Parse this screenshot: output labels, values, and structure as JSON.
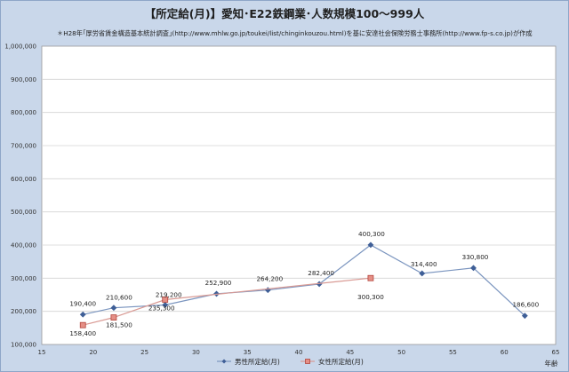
{
  "chart_data": {
    "type": "line",
    "title": "【所定給(月)】愛知･E22鉄鋼業･人数規模100～999人",
    "subtitle": "＊H28年｢厚労省賃金構造基本統計調査｣(http://www.mhlw.go.jp/toukei/list/chinginkouzou.html)を基に安達社会保険労務士事務所(http://www.fp-s.co.jp)が作成",
    "xlabel": "年齢",
    "ylabel": "",
    "xlim": [
      15,
      65
    ],
    "ylim": [
      100000,
      1000000
    ],
    "x_ticks": [
      15,
      20,
      25,
      30,
      35,
      40,
      45,
      50,
      55,
      60,
      65
    ],
    "y_ticks": [
      100000,
      200000,
      300000,
      400000,
      500000,
      600000,
      700000,
      800000,
      900000,
      1000000
    ],
    "y_tick_labels": [
      "100,000",
      "200,000",
      "300,000",
      "400,000",
      "500,000",
      "600,000",
      "700,000",
      "800,000",
      "900,000",
      "1,000,000"
    ],
    "grid": true,
    "legend_position": "bottom",
    "series": [
      {
        "name": "男性所定給(月)",
        "color": "#7b95bf",
        "marker": "diamond",
        "points": [
          {
            "x": 19,
            "y": 190400,
            "label": "190,400"
          },
          {
            "x": 22,
            "y": 210600,
            "label": "210,600"
          },
          {
            "x": 27,
            "y": 219200,
            "label": "219,200"
          },
          {
            "x": 32,
            "y": 252900,
            "label": "252,900"
          },
          {
            "x": 37,
            "y": 264200,
            "label": "264,200"
          },
          {
            "x": 42,
            "y": 282400,
            "label": "282,400"
          },
          {
            "x": 47,
            "y": 400300,
            "label": "400,300"
          },
          {
            "x": 52,
            "y": 314400,
            "label": "314,400"
          },
          {
            "x": 57,
            "y": 330800,
            "label": "330,800"
          },
          {
            "x": 62,
            "y": 186600,
            "label": "186,600"
          }
        ]
      },
      {
        "name": "女性所定給(月)",
        "color": "#d99a94",
        "marker": "square",
        "points": [
          {
            "x": 19,
            "y": 158400,
            "label": "158,400"
          },
          {
            "x": 22,
            "y": 181500,
            "label": "181,500"
          },
          {
            "x": 27,
            "y": 235300,
            "label": "235,300"
          },
          {
            "x": 47,
            "y": 300300,
            "label": "300,300"
          }
        ]
      }
    ]
  }
}
